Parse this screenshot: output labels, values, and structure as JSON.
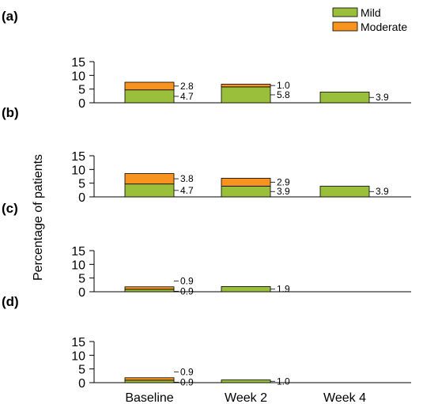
{
  "chart_data": {
    "type": "bar",
    "stacked": true,
    "ylabel": "Percentage of patients",
    "categories": [
      "Baseline",
      "Week 2",
      "Week 4"
    ],
    "yticks": [
      "0",
      "5",
      "10",
      "15"
    ],
    "ylim": [
      0,
      15
    ],
    "grid": false,
    "legend_position": "top-right",
    "legend": [
      {
        "name": "Mild",
        "color": "#99bf3b"
      },
      {
        "name": "Moderate",
        "color": "#f7931e"
      }
    ],
    "panels": [
      {
        "label": "(a)",
        "series": [
          {
            "name": "Mild",
            "values": [
              4.7,
              5.8,
              3.9
            ],
            "labels": [
              "4.7",
              "5.8",
              "3.9"
            ]
          },
          {
            "name": "Moderate",
            "values": [
              2.8,
              1.0,
              null
            ],
            "labels": [
              "2.8",
              "1.0",
              ""
            ]
          }
        ]
      },
      {
        "label": "(b)",
        "series": [
          {
            "name": "Mild",
            "values": [
              4.7,
              3.9,
              3.9
            ],
            "labels": [
              "4.7",
              "3.9",
              "3.9"
            ]
          },
          {
            "name": "Moderate",
            "values": [
              3.8,
              2.9,
              null
            ],
            "labels": [
              "3.8",
              "2.9",
              ""
            ]
          }
        ]
      },
      {
        "label": "(c)",
        "series": [
          {
            "name": "Mild",
            "values": [
              0.9,
              1.9,
              null
            ],
            "labels": [
              "0.9",
              "1.9",
              ""
            ]
          },
          {
            "name": "Moderate",
            "values": [
              0.9,
              null,
              null
            ],
            "labels": [
              "0.9",
              "",
              ""
            ]
          }
        ]
      },
      {
        "label": "(d)",
        "series": [
          {
            "name": "Mild",
            "values": [
              0.9,
              1.0,
              null
            ],
            "labels": [
              "0.9",
              "1.0",
              ""
            ]
          },
          {
            "name": "Moderate",
            "values": [
              0.9,
              null,
              null
            ],
            "labels": [
              "0.9",
              "",
              ""
            ]
          }
        ]
      }
    ]
  }
}
